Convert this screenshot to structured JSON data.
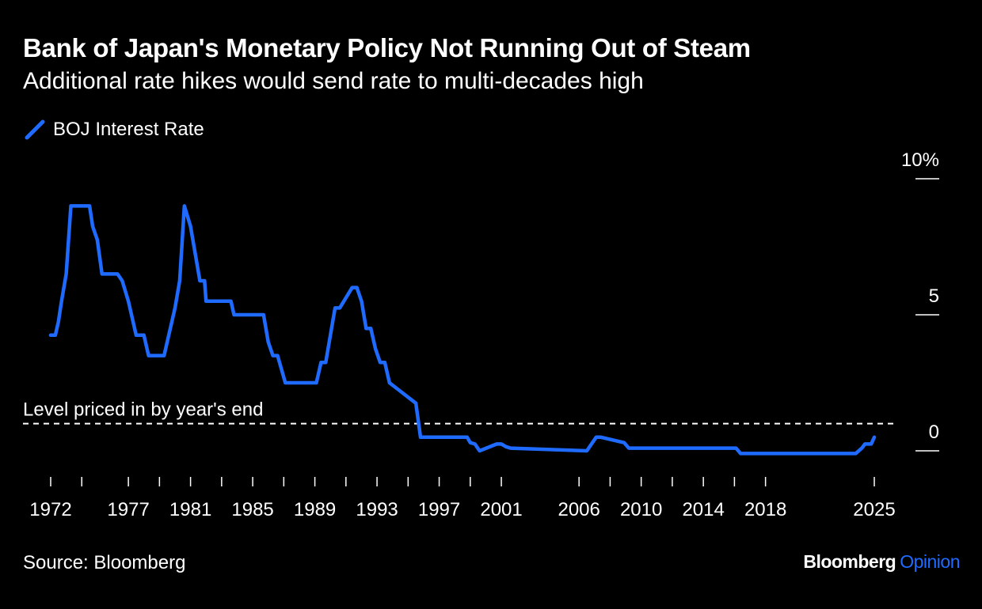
{
  "title": "Bank of Japan's Monetary Policy Not Running Out of Steam",
  "subtitle": "Additional rate hikes would send rate to multi-decades high",
  "source": "Source: Bloomberg",
  "brand": {
    "name": "Bloomberg",
    "suffix": "Opinion"
  },
  "chart_data": {
    "type": "line",
    "title": "Bank of Japan's Monetary Policy Not Running Out of Steam",
    "subtitle": "Additional rate hikes would send rate to multi-decades high",
    "xlabel": "",
    "ylabel": "",
    "xlim": [
      1972,
      2025
    ],
    "ylim": [
      0,
      10
    ],
    "x_ticks": [
      1972,
      1974,
      1977,
      1979,
      1981,
      1983,
      1985,
      1987,
      1989,
      1991,
      1993,
      1995,
      1997,
      1999,
      2001,
      2006,
      2008,
      2010,
      2012,
      2014,
      2016,
      2018,
      2025
    ],
    "x_tick_labels": [
      "1972",
      "",
      "1977",
      "",
      "1981",
      "",
      "1985",
      "",
      "1989",
      "",
      "1993",
      "",
      "1997",
      "",
      "2001",
      "2006",
      "",
      "2010",
      "",
      "2014",
      "",
      "2018",
      "2025"
    ],
    "y_ticks": [
      0,
      5,
      10
    ],
    "y_tick_labels": [
      "0",
      "5",
      "10%"
    ],
    "grid": false,
    "legend_position": "top-left",
    "annotation": {
      "text": "Level priced in by year's end",
      "y": 1.0
    },
    "series": [
      {
        "name": "BOJ Interest Rate",
        "color": "#1f6bff",
        "x": [
          1972.0,
          1972.3,
          1972.5,
          1972.7,
          1973.0,
          1973.3,
          1974.0,
          1974.5,
          1974.7,
          1975.0,
          1975.3,
          1976.3,
          1976.6,
          1977.0,
          1977.3,
          1977.5,
          1978.0,
          1978.3,
          1979.3,
          1979.6,
          1980.0,
          1980.3,
          1980.6,
          1981.0,
          1981.3,
          1981.6,
          1981.9,
          1982.0,
          1983.6,
          1983.8,
          1985.7,
          1986.0,
          1986.3,
          1986.6,
          1987.1,
          1989.1,
          1989.4,
          1989.7,
          1990.0,
          1990.3,
          1990.6,
          1991.4,
          1991.7,
          1992.0,
          1992.3,
          1992.6,
          1992.9,
          1993.2,
          1993.5,
          1993.8,
          1995.5,
          1995.8,
          1998.8,
          1999.0,
          1999.3,
          1999.6,
          2000.7,
          2001.0,
          2001.3,
          2001.6,
          2006.5,
          2006.8,
          2007.1,
          2007.4,
          2008.9,
          2009.2,
          2016.1,
          2016.4,
          2023.8,
          2024.2,
          2024.4,
          2024.8,
          2025.0
        ],
        "values": [
          4.25,
          4.25,
          4.75,
          5.5,
          6.5,
          9.0,
          9.0,
          9.0,
          8.25,
          7.75,
          6.5,
          6.5,
          6.25,
          5.5,
          4.75,
          4.25,
          4.25,
          3.5,
          3.5,
          4.25,
          5.25,
          6.25,
          9.0,
          8.25,
          7.25,
          6.25,
          6.25,
          5.5,
          5.5,
          5.0,
          5.0,
          4.0,
          3.5,
          3.5,
          2.5,
          2.5,
          3.25,
          3.25,
          4.25,
          5.25,
          5.25,
          6.0,
          6.0,
          5.5,
          4.5,
          4.5,
          3.75,
          3.25,
          3.25,
          2.5,
          1.75,
          0.5,
          0.5,
          0.3,
          0.25,
          0.0,
          0.25,
          0.25,
          0.15,
          0.1,
          0.0,
          0.25,
          0.5,
          0.5,
          0.3,
          0.1,
          0.1,
          -0.1,
          -0.1,
          0.1,
          0.25,
          0.25,
          0.5
        ]
      }
    ]
  }
}
